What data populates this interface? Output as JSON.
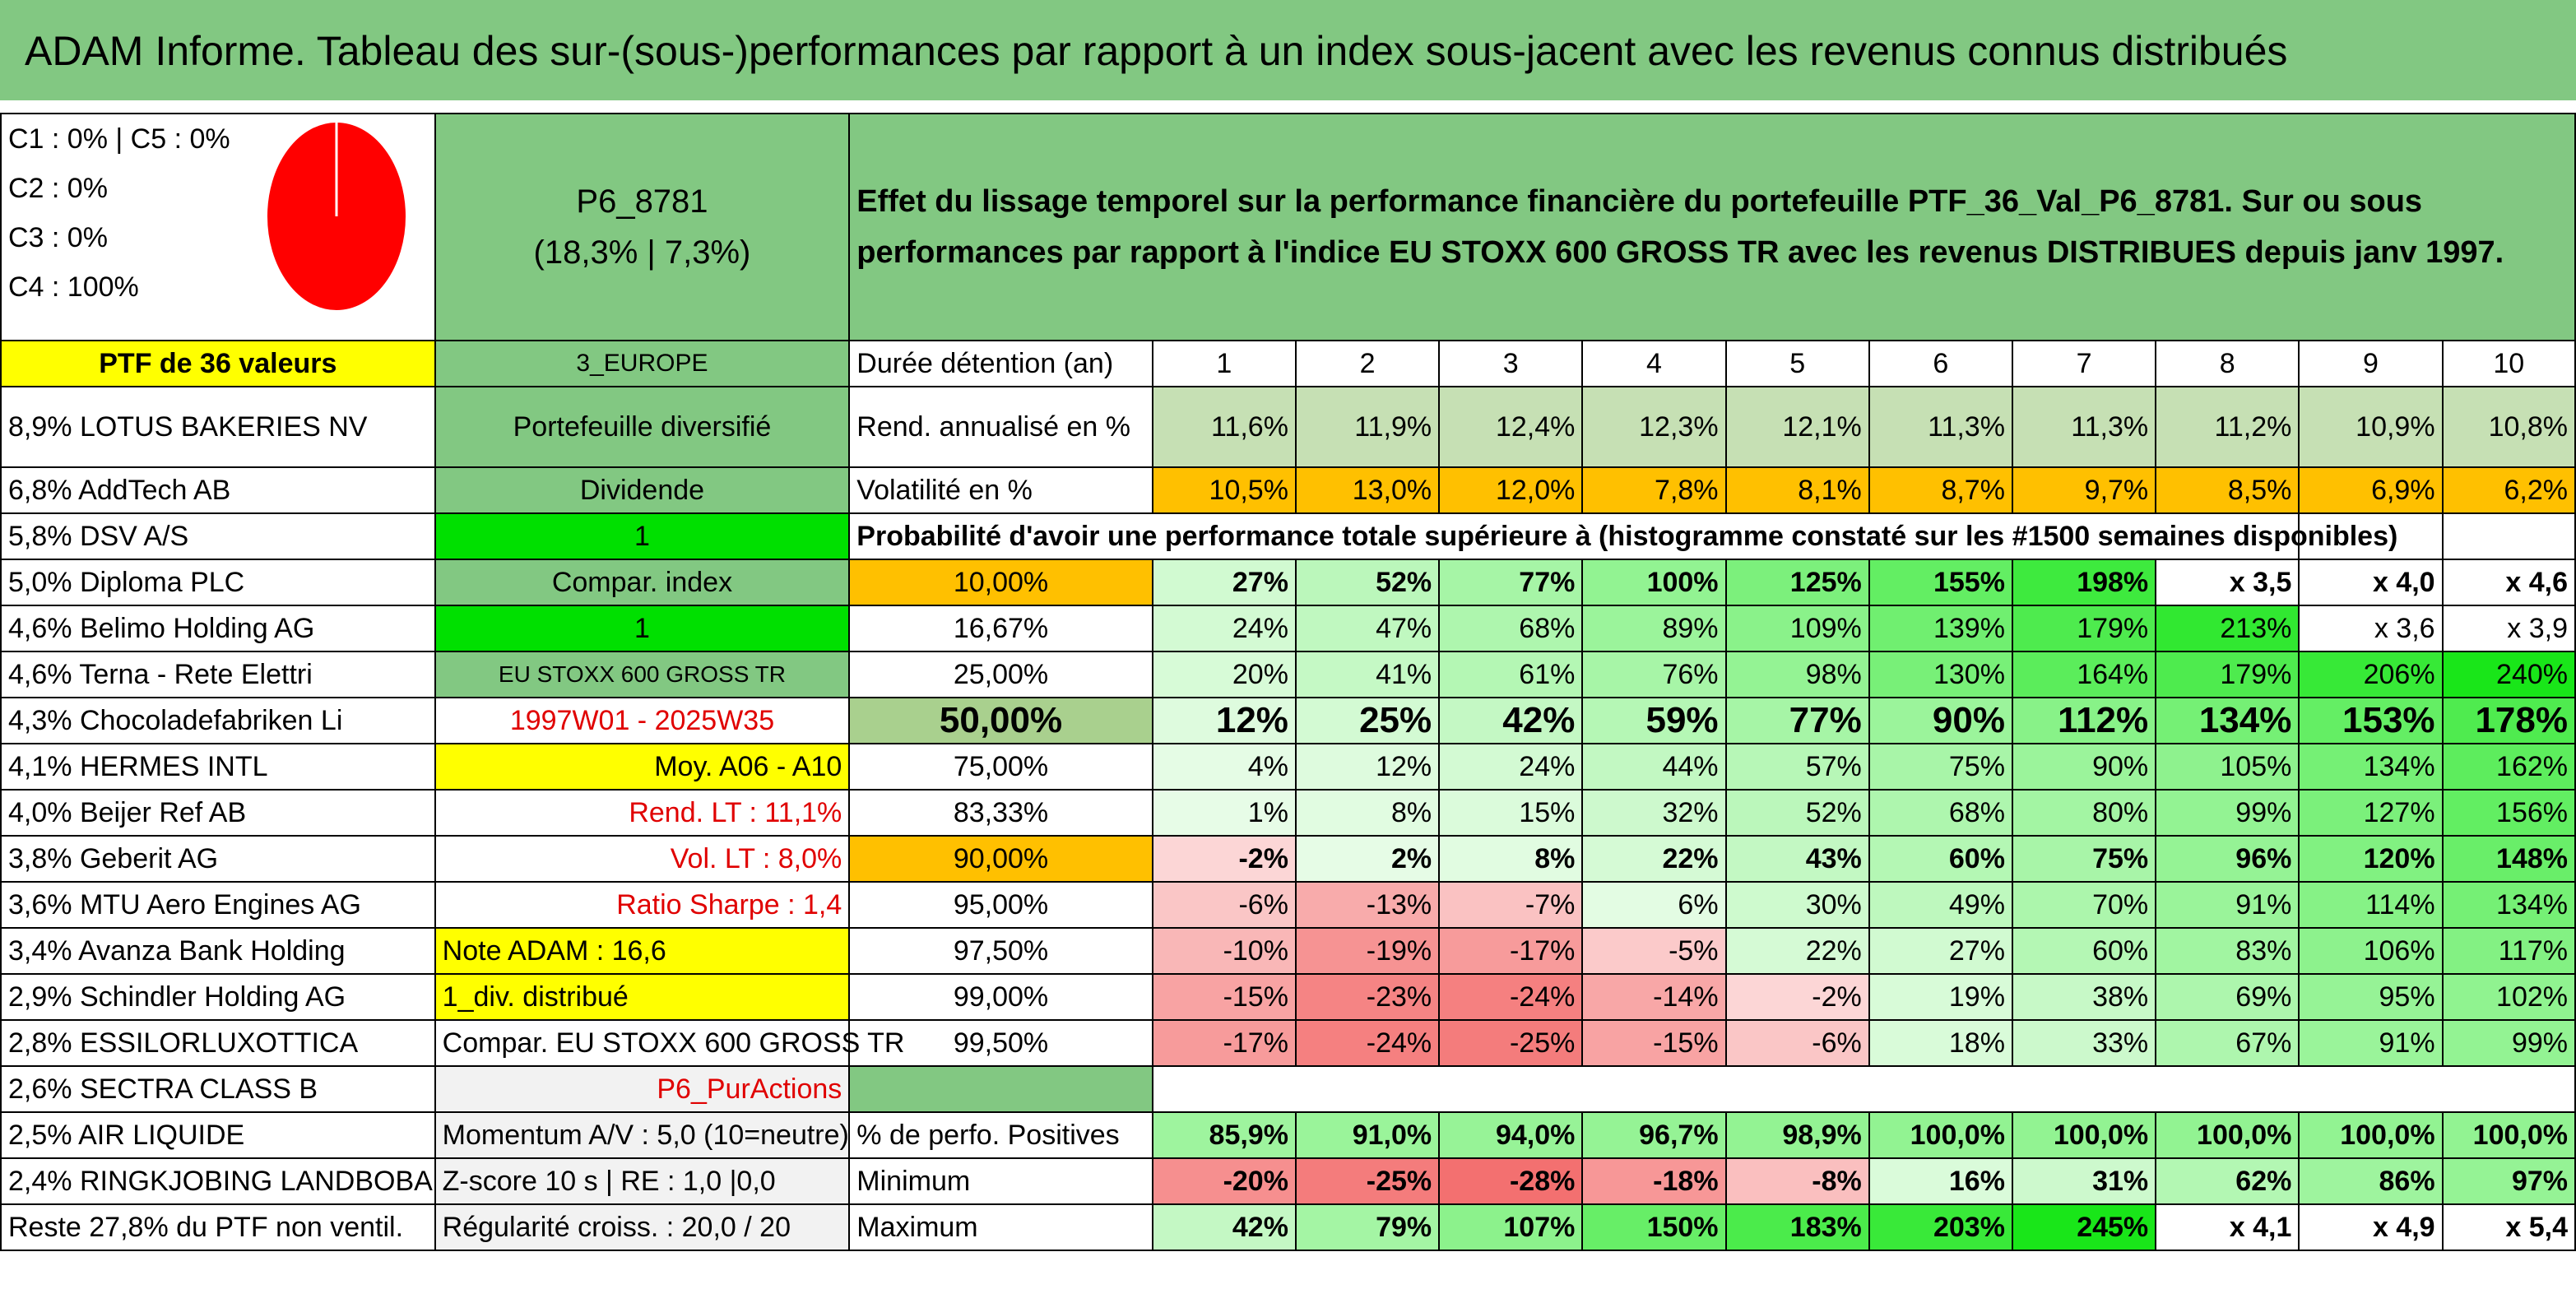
{
  "title": "ADAM Informe. Tableau des sur-(sous-)performances par rapport à un index sous-jacent avec les revenus connus distribués",
  "pie_labels": [
    "C1 : 0% | C5 : 0%",
    "C2 : 0%",
    "C3 : 0%",
    "C4 : 100%"
  ],
  "pie_color": "#ff0000",
  "portfolio": {
    "code": "P6_8781",
    "stats": "(18,3% | 7,3%)"
  },
  "description": "Effet du lissage temporel sur la performance financière du portefeuille PTF_36_Val_P6_8781. Sur ou sous performances par rapport à l'indice EU STOXX 600 GROSS TR avec les revenus DISTRIBUES depuis janv 1997.",
  "holdings": [
    "PTF de 36 valeurs",
    "8,9% LOTUS BAKERIES NV",
    "6,8% AddTech AB",
    "5,8% DSV A/S",
    "5,0% Diploma PLC",
    "4,6% Belimo Holding AG",
    "4,6% Terna - Rete Elettri",
    "4,3% Chocoladefabriken Li",
    "4,1% HERMES INTL",
    "4,0% Beijer Ref AB",
    "3,8% Geberit AG",
    "3,6% MTU Aero Engines AG",
    "3,4% Avanza Bank Holding",
    "2,9% Schindler Holding AG",
    "2,8% ESSILORLUXOTTICA",
    "2,6% SECTRA CLASS B",
    "2,5% AIR LIQUIDE",
    "2,4% RINGKJOBING LANDBOBA",
    "Reste 27,8% du PTF non ventil."
  ],
  "info": [
    "3_EUROPE",
    "Portefeuille diversifié",
    "Dividende",
    "1",
    "Compar. index",
    "1",
    "EU STOXX 600 GROSS TR",
    "1997W01 - 2025W35",
    "Moy. A06 - A10",
    "Rend. LT : 11,1%",
    "Vol. LT : 8,0%",
    "Ratio Sharpe : 1,4",
    "Note ADAM : 16,6",
    "1_div. distribué",
    "Compar. EU STOXX 600 GROSS TR",
    "P6_PurActions",
    "Momentum A/V : 5,0 (10=neutre)",
    "Z-score 10 s | RE : 1,0 |0,0",
    "Régularité croiss. : 20,0 / 20"
  ],
  "labels": {
    "duration": "Durée détention (an)",
    "return": "Rend. annualisé en %",
    "volatility": "Volatilité en %",
    "probability": "Probabilité d'avoir une performance totale supérieure à (histogramme constaté sur les #1500 semaines disponibles)",
    "positive": "% de perfo. Positives",
    "minimum": "Minimum",
    "maximum": "Maximum"
  },
  "years": [
    "1",
    "2",
    "3",
    "4",
    "5",
    "6",
    "7",
    "8",
    "9",
    "10"
  ],
  "returns": [
    "11,6%",
    "11,9%",
    "12,4%",
    "12,3%",
    "12,1%",
    "11,3%",
    "11,3%",
    "11,2%",
    "10,9%",
    "10,8%"
  ],
  "volatility": [
    "10,5%",
    "13,0%",
    "12,0%",
    "7,8%",
    "8,1%",
    "8,7%",
    "9,7%",
    "8,5%",
    "6,9%",
    "6,2%"
  ],
  "percentile_rows": [
    {
      "p": "10,00%",
      "v": [
        "27%",
        "52%",
        "77%",
        "100%",
        "125%",
        "155%",
        "198%",
        "x 3,5",
        "x 4,0",
        "x 4,6"
      ]
    },
    {
      "p": "16,67%",
      "v": [
        "24%",
        "47%",
        "68%",
        "89%",
        "109%",
        "139%",
        "179%",
        "213%",
        "x 3,6",
        "x 3,9"
      ]
    },
    {
      "p": "25,00%",
      "v": [
        "20%",
        "41%",
        "61%",
        "76%",
        "98%",
        "130%",
        "164%",
        "179%",
        "206%",
        "240%"
      ]
    },
    {
      "p": "50,00%",
      "v": [
        "12%",
        "25%",
        "42%",
        "59%",
        "77%",
        "90%",
        "112%",
        "134%",
        "153%",
        "178%"
      ]
    },
    {
      "p": "75,00%",
      "v": [
        "4%",
        "12%",
        "24%",
        "44%",
        "57%",
        "75%",
        "90%",
        "105%",
        "134%",
        "162%"
      ]
    },
    {
      "p": "83,33%",
      "v": [
        "1%",
        "8%",
        "15%",
        "32%",
        "52%",
        "68%",
        "80%",
        "99%",
        "127%",
        "156%"
      ]
    },
    {
      "p": "90,00%",
      "v": [
        "-2%",
        "2%",
        "8%",
        "22%",
        "43%",
        "60%",
        "75%",
        "96%",
        "120%",
        "148%"
      ]
    },
    {
      "p": "95,00%",
      "v": [
        "-6%",
        "-13%",
        "-7%",
        "6%",
        "30%",
        "49%",
        "70%",
        "91%",
        "114%",
        "134%"
      ]
    },
    {
      "p": "97,50%",
      "v": [
        "-10%",
        "-19%",
        "-17%",
        "-5%",
        "22%",
        "27%",
        "60%",
        "83%",
        "106%",
        "117%"
      ]
    },
    {
      "p": "99,00%",
      "v": [
        "-15%",
        "-23%",
        "-24%",
        "-14%",
        "-2%",
        "19%",
        "38%",
        "69%",
        "95%",
        "102%"
      ]
    },
    {
      "p": "99,50%",
      "v": [
        "-17%",
        "-24%",
        "-25%",
        "-15%",
        "-6%",
        "18%",
        "33%",
        "67%",
        "91%",
        "99%"
      ]
    }
  ],
  "positive": [
    "85,9%",
    "91,0%",
    "94,0%",
    "96,7%",
    "98,9%",
    "100,0%",
    "100,0%",
    "100,0%",
    "100,0%",
    "100,0%"
  ],
  "minimum": [
    "-20%",
    "-25%",
    "-28%",
    "-18%",
    "-8%",
    "16%",
    "31%",
    "62%",
    "86%",
    "97%"
  ],
  "maximum": [
    "42%",
    "79%",
    "107%",
    "150%",
    "183%",
    "203%",
    "245%",
    "x 4,1",
    "x 4,9",
    "x 5,4"
  ]
}
